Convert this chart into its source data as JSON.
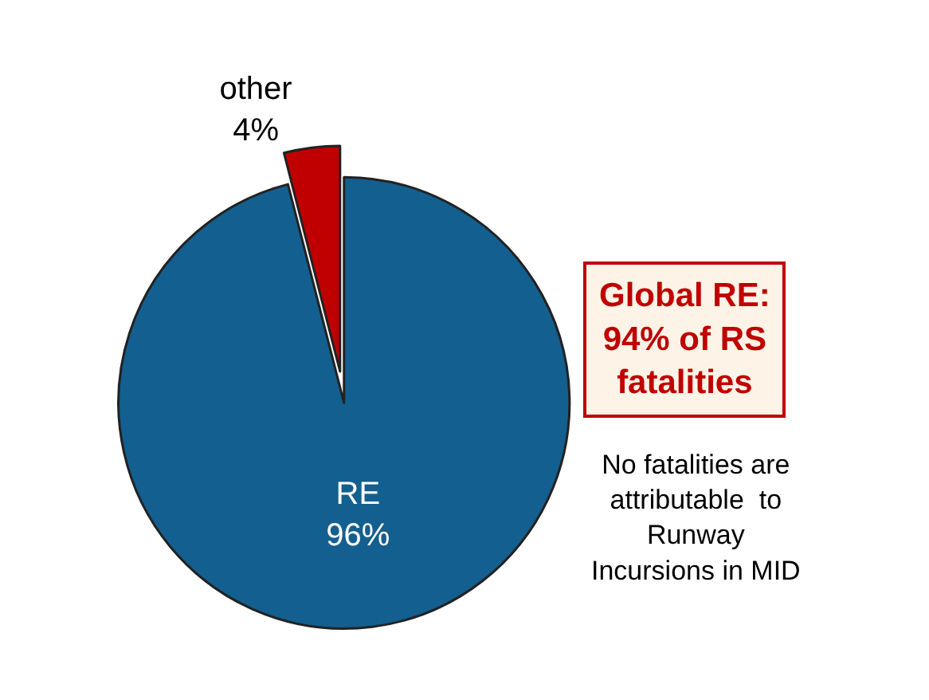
{
  "chart_data": {
    "type": "pie",
    "categories": [
      "RE",
      "other"
    ],
    "values": [
      96,
      4
    ],
    "value_labels": [
      "96%",
      "4%"
    ],
    "colors": [
      "#135f8f",
      "#c00000"
    ],
    "legend": false,
    "annotations": [
      "Global RE:\n94% of RS\nfatalities",
      "No fatalities are\nattributable  to\nRunway\nIncursions in MID"
    ]
  }
}
